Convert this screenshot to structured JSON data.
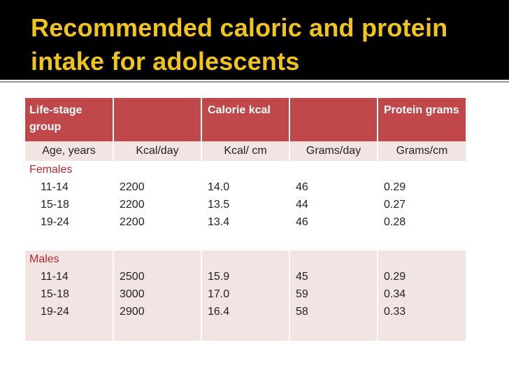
{
  "title": "Recommended caloric and protein intake for adolescents",
  "header": [
    "Life-stage group",
    "",
    "Calorie kcal",
    "",
    "Protein grams"
  ],
  "subheader": [
    "Age, years",
    "Kcal/day",
    "Kcal/ cm",
    "Grams/day",
    "Grams/cm"
  ],
  "groups": [
    {
      "name": "Females",
      "rows": [
        [
          "11-14",
          "2200",
          "14.0",
          "46",
          "0.29"
        ],
        [
          "15-18",
          "2200",
          "13.5",
          "44",
          "0.27"
        ],
        [
          "19-24",
          "2200",
          "13.4",
          "46",
          "0.28"
        ]
      ]
    },
    {
      "name": "Males",
      "rows": [
        [
          "11-14",
          "2500",
          "15.9",
          "45",
          "0.29"
        ],
        [
          "15-18",
          "3000",
          "17.0",
          "59",
          "0.34"
        ],
        [
          "19-24",
          "2900",
          "16.4",
          "58",
          "0.33"
        ]
      ]
    }
  ],
  "colors": {
    "title": "#f0c419",
    "header": "#c0484a",
    "band": "#f3e4e4",
    "group": "#c0282b"
  }
}
